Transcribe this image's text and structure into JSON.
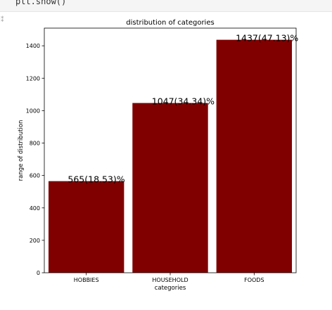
{
  "notebook": {
    "code_line": "plt.show()",
    "cell_glyph": "⁑"
  },
  "colors": {
    "bar": "#800000",
    "axis": "#000000"
  },
  "chart_data": {
    "type": "bar",
    "title": "distribution of categories",
    "xlabel": "categories",
    "ylabel": "range of distribution",
    "categories": [
      "HOBBIES",
      "HOUSEHOLD",
      "FOODS"
    ],
    "values": [
      565,
      1047,
      1437
    ],
    "data_labels": [
      "565(18.53)%",
      "1047(34.34)%",
      "1437(47.13)%"
    ],
    "ylim": [
      0,
      1509
    ],
    "yticks": [
      "0",
      "200",
      "400",
      "600",
      "800",
      "1000",
      "1200",
      "1400"
    ],
    "grid": false
  }
}
